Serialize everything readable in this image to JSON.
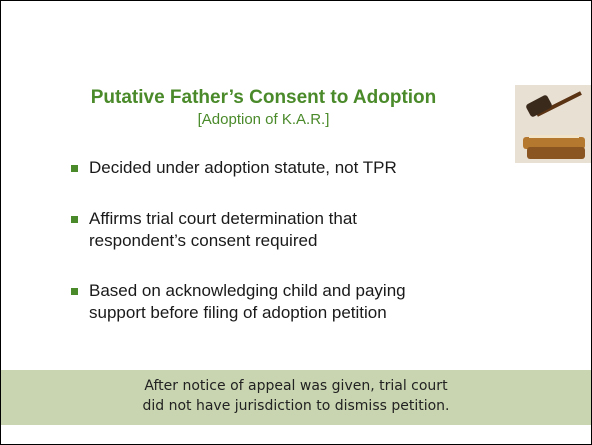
{
  "title": "Putative Father’s Consent to Adoption",
  "subtitle": "[Adoption of K.A.R.]",
  "bullets": [
    [
      "Decided under adoption statute, not TPR"
    ],
    [
      "Affirms trial court determination that",
      "respondent’s consent required"
    ],
    [
      "Based on acknowledging child and paying",
      "support before filing of adoption petition"
    ]
  ],
  "note": {
    "lines": [
      "After notice of appeal was given, trial court",
      "did not have jurisdiction to dismiss petition."
    ]
  }
}
